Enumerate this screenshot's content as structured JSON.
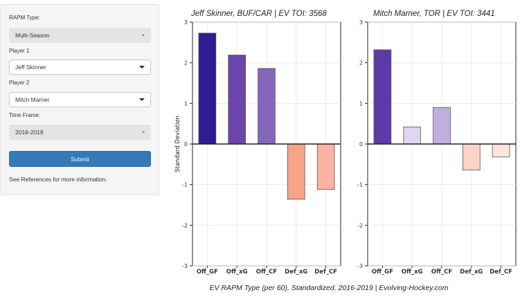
{
  "sidebar": {
    "rapm_type_label": "RAPM Type:",
    "rapm_type_value": "Multi-Season",
    "player1_label": "Player 1",
    "player1_value": "Jeff Skinner",
    "player2_label": "Player 2",
    "player2_value": "Mitch Marner",
    "timeframe_label": "Time Frame:",
    "timeframe_value": "2016-2019",
    "submit_label": "Submit",
    "help_text": "See References for more information."
  },
  "footer": "EV RAPM Type (per 60), Standardized, 2016-2019   |   Evolving-Hockey.com",
  "colors": {
    "sidebar_bg": "#f5f5f5",
    "submit_bg": "#337ab7"
  },
  "chart_data": [
    {
      "type": "bar",
      "title": "Jeff Skinner, BUF/CAR  |  EV TOI: 3568",
      "ylabel": "Standard Deviation",
      "xlabel": "",
      "categories": [
        "Off_GF",
        "Off_xG",
        "Off_CF",
        "Def_xG",
        "Def_CF"
      ],
      "values": [
        2.73,
        2.19,
        1.86,
        -1.36,
        -1.12
      ],
      "colors": [
        "#311b92",
        "#6a45ae",
        "#8466bd",
        "#f7a48a",
        "#f9b3a0"
      ],
      "ylim": [
        -3,
        3
      ],
      "yticks": [
        "3",
        "2",
        "1",
        "0",
        "-1",
        "-2",
        "-3"
      ],
      "grid": true
    },
    {
      "type": "bar",
      "title": "Mitch Marner, TOR  |  EV TOI: 3441",
      "ylabel": "",
      "xlabel": "",
      "categories": [
        "Off_GF",
        "Off_xG",
        "Off_CF",
        "Def_xG",
        "Def_CF"
      ],
      "values": [
        2.32,
        0.42,
        0.9,
        -0.64,
        -0.32
      ],
      "colors": [
        "#5e3aa8",
        "#ddd6ee",
        "#c0aedc",
        "#fcd3c6",
        "#fde5dc"
      ],
      "ylim": [
        -3,
        3
      ],
      "yticks": [
        "3",
        "2",
        "1",
        "0",
        "-1",
        "-2",
        "-3"
      ],
      "grid": true
    }
  ]
}
